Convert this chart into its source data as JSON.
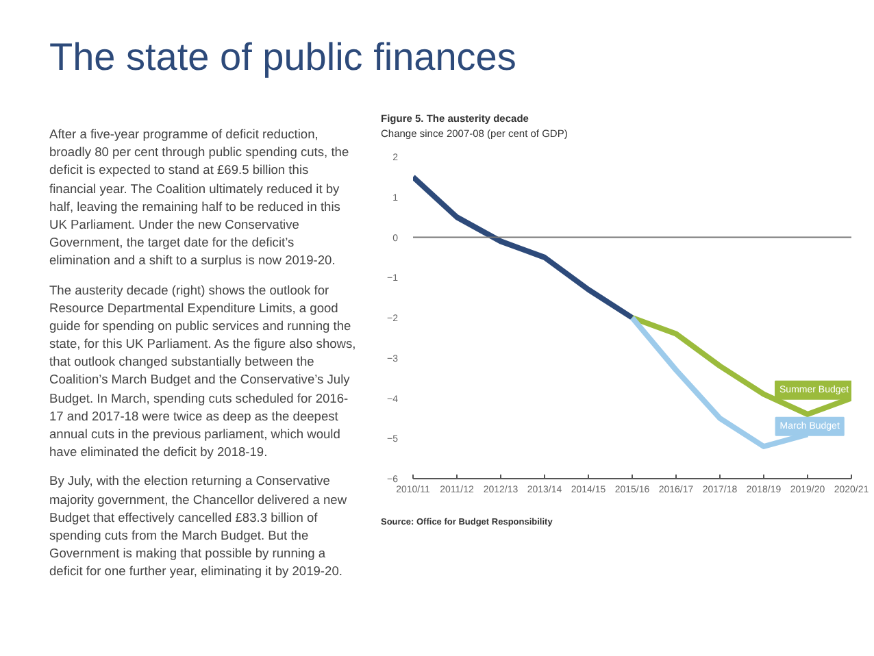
{
  "chart_data": {
    "type": "line",
    "title": "Figure 5. The austerity decade",
    "subtitle": "Change since 2007-08 (per cent of GDP)",
    "categories": [
      "2010/11",
      "2011/12",
      "2012/13",
      "2013/14",
      "2014/15",
      "2015/16",
      "2016/17",
      "2017/18",
      "2018/19",
      "2019/20",
      "2020/21"
    ],
    "series": [
      {
        "color": "#2d4a7a",
        "values": [
          1.5,
          0.5,
          -0.1,
          -0.5,
          -1.3,
          -2.0,
          null,
          null,
          null,
          null,
          null
        ]
      },
      {
        "name": "Summer Budget",
        "color": "#9bbb3c",
        "values": [
          null,
          null,
          null,
          null,
          null,
          -2.0,
          -2.4,
          -3.2,
          -3.9,
          -4.4,
          -4.0
        ]
      },
      {
        "name": "March Budget",
        "color": "#9dcbeb",
        "values": [
          null,
          null,
          null,
          null,
          null,
          -2.0,
          -3.3,
          -4.5,
          -5.2,
          -4.9,
          null
        ]
      }
    ],
    "ylim": [
      -6,
      2
    ],
    "yticks": [
      -6,
      -5,
      -4,
      -3,
      -2,
      -1,
      0,
      1,
      2
    ],
    "grid": false,
    "marker": "none",
    "line_style": "solid",
    "ref_lines": [
      {
        "axis": "y",
        "value": 0,
        "color": "#777777"
      }
    ],
    "annotations": [
      "The state of public finances",
      "After a five-year programme of deficit reduction, broadly 80 per cent through public spending cuts, the deficit is expected to stand at £69.5 billion this financial year. The Coalition ultimately reduced it by half, leaving the remaining half to be reduced in this UK Parliament. Under the new Conservative Government, the target date for the deficit’s elimination and a shift to a surplus is now 2019-20.",
      "The austerity decade (right) shows the outlook for Resource Departmental Expenditure Limits, a good guide for spending on public services and running the state, for this UK Parliament. As the figure also shows, that outlook changed substantially between the Coalition’s March Budget and the Conservative’s July Budget. In March, spending cuts scheduled for 2016-17 and 2017-18 were twice as deep as the deepest annual cuts in the previous parliament, which would have eliminated the deficit by 2018-19.",
      "By July, with the election returning a Conservative majority government, the Chancellor delivered a new Budget that effectively cancelled £83.3 billion of spending cuts from the March Budget. But the Government is making that possible by running a deficit for one further year, eliminating it by 2019-20.",
      "Source: Office for Budget Responsibility"
    ]
  }
}
